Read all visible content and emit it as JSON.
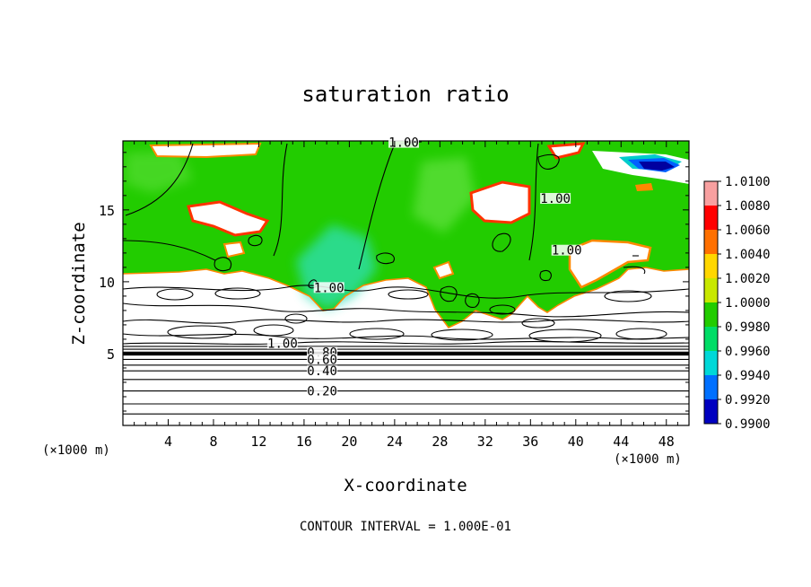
{
  "chart_data": {
    "type": "heatmap",
    "title": "saturation ratio",
    "xlabel": "X-coordinate",
    "ylabel": "Z-coordinate",
    "x_unit_left": "(×1000 m)",
    "x_unit_right": "(×1000 m)",
    "xlim": [
      0,
      50
    ],
    "ylim": [
      0,
      19.8
    ],
    "x_ticks": [
      4,
      8,
      12,
      16,
      20,
      24,
      28,
      32,
      36,
      40,
      44,
      48
    ],
    "y_ticks": [
      5,
      10,
      15
    ],
    "colorbar": {
      "levels": [
        "1.0100",
        "1.0080",
        "1.0060",
        "1.0040",
        "1.0020",
        "1.0000",
        "0.9980",
        "0.9960",
        "0.9940",
        "0.9920",
        "0.9900"
      ],
      "colors": [
        "#f8a0a0",
        "#ff0000",
        "#ff7000",
        "#ffd700",
        "#c8e800",
        "#22cc00",
        "#00dd66",
        "#00d8d8",
        "#0070ff",
        "#0000c0",
        "#6a00a8"
      ]
    },
    "contour_labels": [
      {
        "text": "1.00",
        "x": 24.8,
        "z": 19.7
      },
      {
        "text": "1.00",
        "x": 38.2,
        "z": 15.8
      },
      {
        "text": "1.00",
        "x": 39.2,
        "z": 12.2
      },
      {
        "text": "1.00",
        "x": 18.2,
        "z": 9.6
      },
      {
        "text": "1.00",
        "x": 14.1,
        "z": 5.7
      },
      {
        "text": "0.80",
        "x": 17.6,
        "z": 5.1
      },
      {
        "text": "0.60",
        "x": 17.6,
        "z": 4.6
      },
      {
        "text": "0.40",
        "x": 17.6,
        "z": 3.8
      },
      {
        "text": "0.20",
        "x": 17.6,
        "z": 2.4
      }
    ],
    "low_contours_z": [
      0.8,
      1.5,
      2.4,
      3.2,
      3.8,
      4.2,
      4.6,
      4.9,
      5.1,
      5.3,
      5.5
    ],
    "footnote": "CONTOUR INTERVAL = 1.000E-01"
  }
}
